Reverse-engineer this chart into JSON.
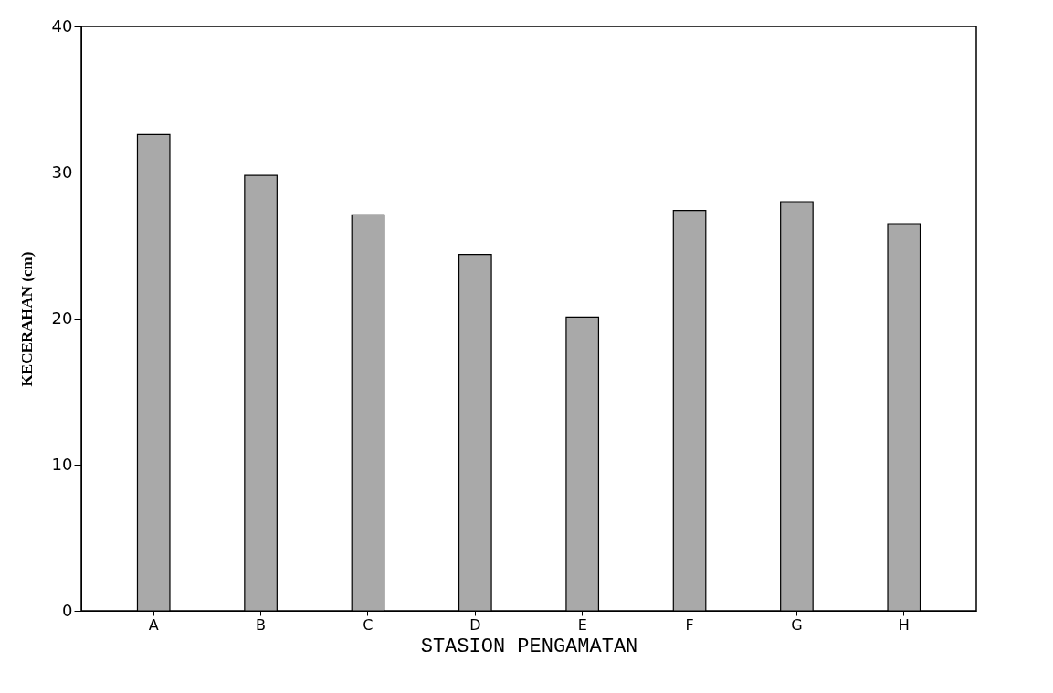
{
  "chart_data": {
    "type": "bar",
    "xlabel": "STASION PENGAMATAN",
    "ylabel": "KECERAHAN (cm)",
    "categories": [
      "A",
      "B",
      "C",
      "D",
      "E",
      "F",
      "G",
      "H"
    ],
    "values": [
      32.6,
      29.8,
      27.1,
      24.4,
      20.1,
      27.4,
      28.0,
      26.5
    ],
    "color": "#a9a9a9",
    "ylim": [
      0,
      40
    ],
    "yticks": [
      0,
      10,
      20,
      30,
      40
    ],
    "grid": false
  }
}
